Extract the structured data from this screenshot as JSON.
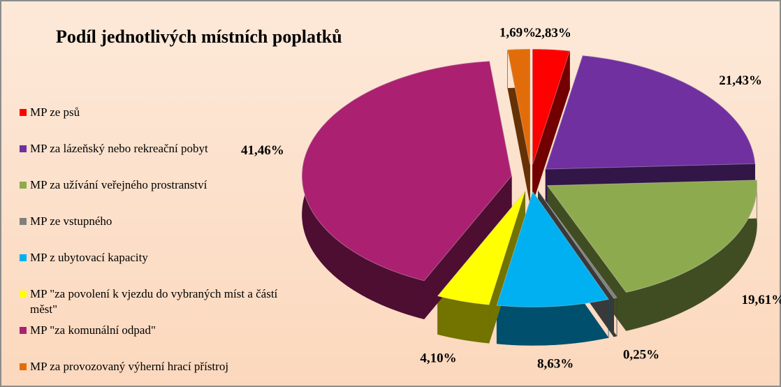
{
  "chart_data": {
    "type": "pie",
    "title": "Podíl jednotlivých místních poplatků",
    "categories": [
      "MP ze psů",
      "MP za lázeňský nebo rekreační pobyt",
      "MP za užívání veřejného prostranství",
      "MP ze vstupného",
      "MP z ubytovací kapacity",
      "MP \"za povolení k vjezdu do vybraných míst a částí měst\"",
      "MP \"za komunální odpad\"",
      "MP za provozovaný výherní hrací přístroj"
    ],
    "values": [
      2.83,
      21.43,
      19.61,
      0.25,
      8.63,
      4.1,
      41.46,
      1.69
    ],
    "value_labels": [
      "2,83%",
      "21,43%",
      "19,61%",
      "0,25%",
      "8,63%",
      "4,10%",
      "41,46%",
      "1,69%"
    ],
    "colors": [
      "#ff0000",
      "#7030a0",
      "#8eaa4e",
      "#7f7f7f",
      "#00b0f0",
      "#ffff00",
      "#ab2070",
      "#e36c0a"
    ],
    "legend": "left"
  }
}
